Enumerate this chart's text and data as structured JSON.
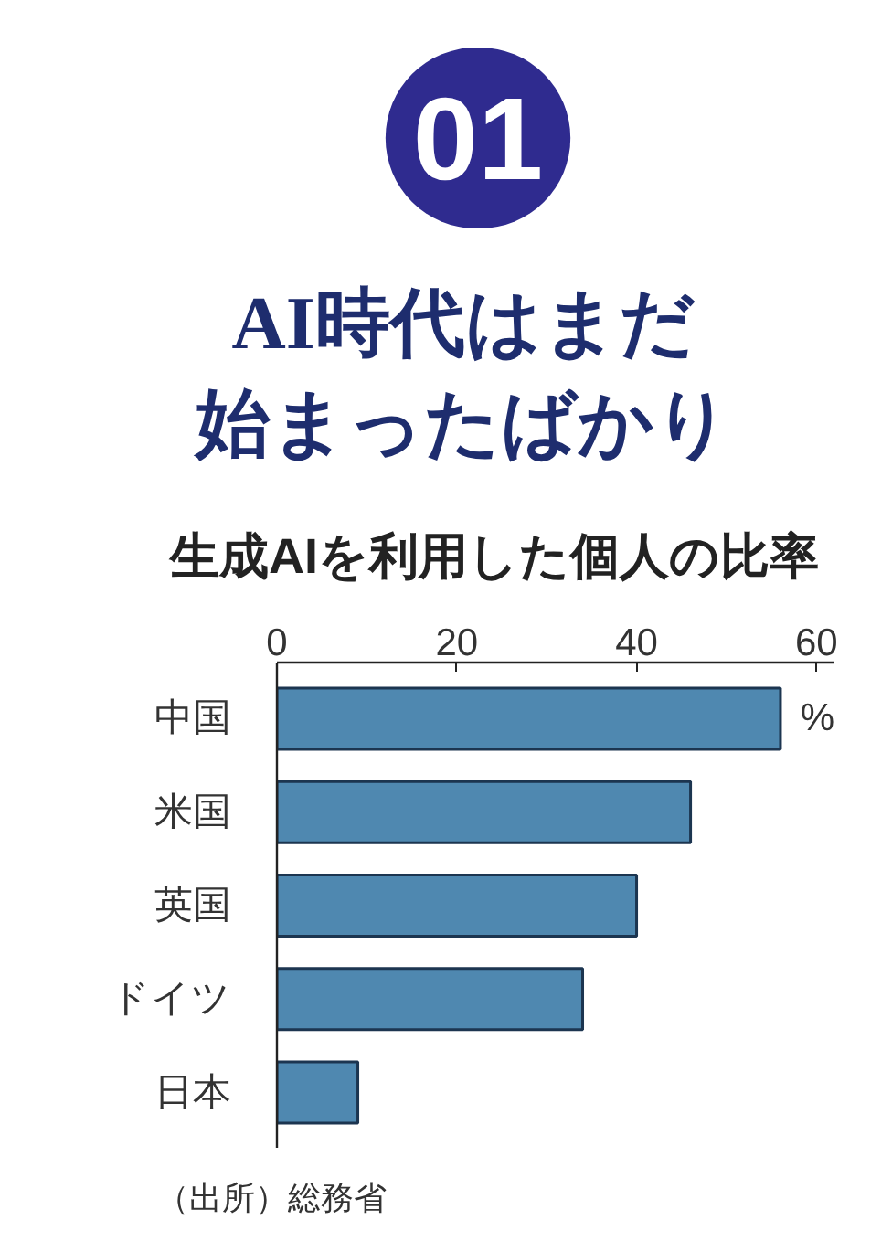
{
  "chart_data": {
    "type": "bar",
    "orientation": "horizontal",
    "title": "AI時代はまだ始まったばかり",
    "subtitle": "生成AIを利用した個人の比率",
    "xlabel": "%",
    "categories": [
      "中国",
      "米国",
      "英国",
      "ドイツ",
      "日本"
    ],
    "values": [
      56,
      46,
      40,
      34,
      9
    ],
    "color": "#4f88b0",
    "xlim": [
      0,
      62
    ],
    "xticks": [
      0,
      20,
      40,
      60
    ],
    "grid": false,
    "annotations": [
      "01",
      "（出所）総務省"
    ]
  }
}
